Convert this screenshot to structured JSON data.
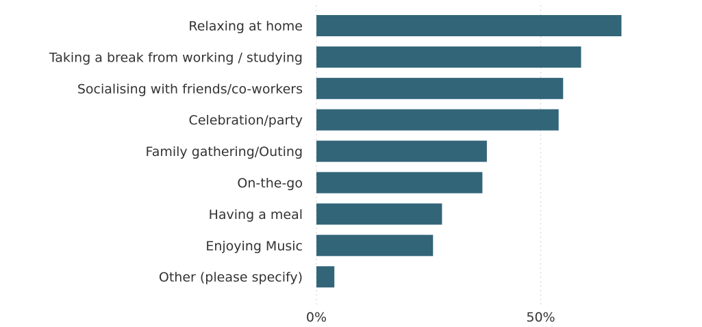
{
  "chart_data": {
    "type": "bar",
    "orientation": "horizontal",
    "title": "",
    "xlabel": "",
    "ylabel": "",
    "categories": [
      "Relaxing at home",
      "Taking a break from working / studying",
      "Socialising with friends/co-workers",
      "Celebration/party",
      "Family gathering/Outing",
      "On-the-go",
      "Having a meal",
      "Enjoying Music",
      "Other (please specify)"
    ],
    "values": [
      68,
      59,
      55,
      54,
      38,
      37,
      28,
      26,
      4
    ],
    "xlim": [
      0,
      80
    ],
    "xticks": [
      {
        "value": 0,
        "label": "0%"
      },
      {
        "value": 50,
        "label": "50%"
      }
    ],
    "grid": "vertical dotted",
    "legend": "none",
    "colors": {
      "bar": "#336579",
      "label": "#333333",
      "grid": "#c8c8c8"
    }
  }
}
